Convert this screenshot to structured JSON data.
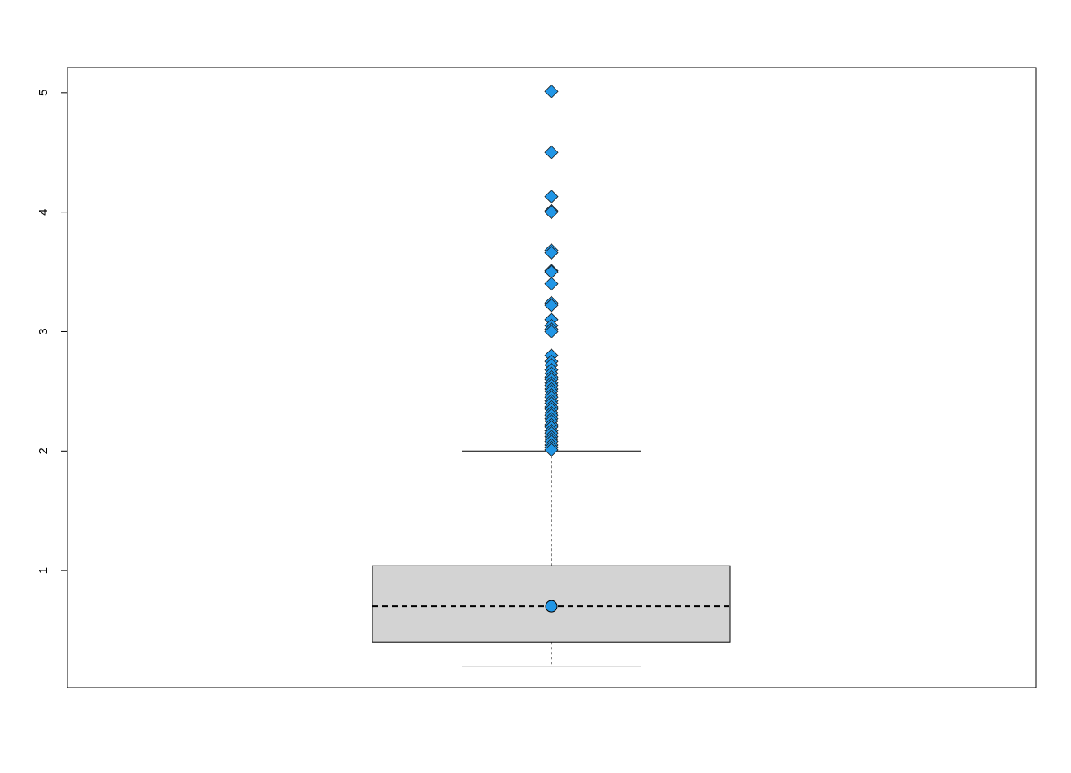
{
  "chart_data": {
    "type": "boxplot",
    "title": "",
    "xlabel": "",
    "ylabel": "",
    "ylim": [
      0.02,
      5.21
    ],
    "yticks": [
      1,
      2,
      3,
      4,
      5
    ],
    "ytick_labels": [
      "1",
      "2",
      "3",
      "4",
      "5"
    ],
    "grid": false,
    "legend": "none",
    "box": {
      "q1": 0.4,
      "median": 0.7,
      "q3": 1.04,
      "whisker_low": 0.2,
      "whisker_high": 2.0,
      "mean": 0.7,
      "fill_color": "#d3d3d3",
      "median_line_style": "dashed"
    },
    "outliers": [
      5.01,
      4.5,
      4.13,
      4.01,
      4.0,
      3.68,
      3.66,
      3.51,
      3.5,
      3.4,
      3.24,
      3.22,
      3.1,
      3.05,
      3.02,
      3.0,
      2.8,
      2.75,
      2.72,
      2.68,
      2.65,
      2.62,
      2.6,
      2.57,
      2.55,
      2.52,
      2.5,
      2.47,
      2.45,
      2.42,
      2.4,
      2.37,
      2.35,
      2.32,
      2.3,
      2.27,
      2.25,
      2.22,
      2.2,
      2.17,
      2.15,
      2.12,
      2.1,
      2.08,
      2.05,
      2.03,
      2.01
    ],
    "outlier_shape": "diamond",
    "outlier_color": "#2196e6",
    "mean_marker_shape": "circle",
    "mean_marker_color": "#2196e6"
  }
}
